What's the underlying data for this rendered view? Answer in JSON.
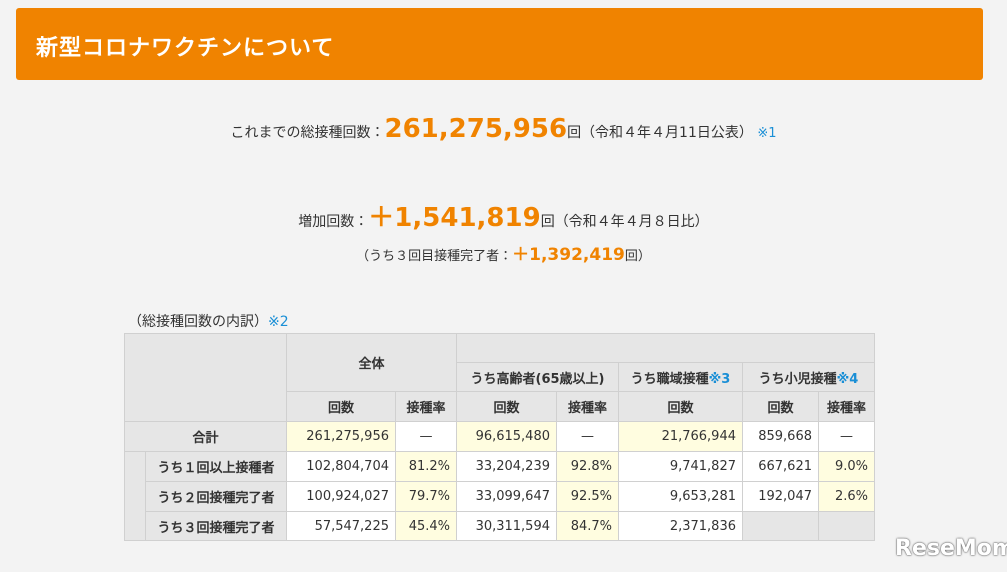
{
  "header": {
    "title": "新型コロナワクチンについて"
  },
  "summary": {
    "total_label": "これまでの総接種回数：",
    "total_value": "261,275,956",
    "total_suffix": "回（令和４年４月11日公表）",
    "total_note": "※1",
    "increase_label": "増加回数：",
    "increase_value": "＋1,541,819",
    "increase_suffix": "回（令和４年４月８日比）",
    "third_label": "（うち３回目接種完了者：",
    "third_value": "＋1,392,419",
    "third_suffix": "回）"
  },
  "table": {
    "caption": "（総接種回数の内訳）",
    "caption_note": "※2",
    "groups": [
      {
        "label": "全体"
      },
      {
        "label": "うち高齢者(65歳以上)"
      },
      {
        "label": "うち職域接種",
        "note": "※3"
      },
      {
        "label": "うち小児接種",
        "note": "※4"
      }
    ],
    "subheaders": [
      "回数",
      "接種率",
      "回数",
      "接種率",
      "回数",
      "回数",
      "接種率"
    ],
    "rows": [
      {
        "label": "合計",
        "cells": [
          "261,275,956",
          "—",
          "96,615,480",
          "—",
          "21,766,944",
          "859,668",
          "—"
        ]
      },
      {
        "label": "うち１回以上接種者",
        "cells": [
          "102,804,704",
          "81.2%",
          "33,204,239",
          "92.8%",
          "9,741,827",
          "667,621",
          "9.0%"
        ]
      },
      {
        "label": "うち２回接種完了者",
        "cells": [
          "100,924,027",
          "79.7%",
          "33,099,647",
          "92.5%",
          "9,653,281",
          "192,047",
          "2.6%"
        ]
      },
      {
        "label": "うち３回接種完了者",
        "cells": [
          "57,547,225",
          "45.4%",
          "30,311,594",
          "84.7%",
          "2,371,836"
        ]
      }
    ]
  },
  "watermark": "ReseMom"
}
